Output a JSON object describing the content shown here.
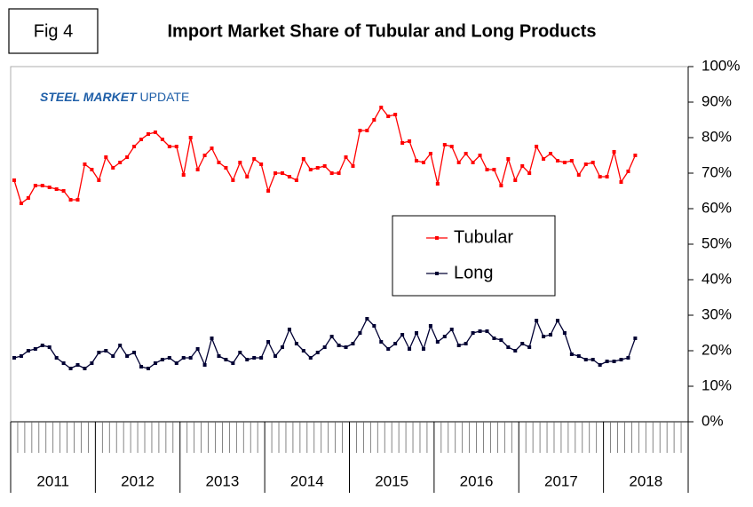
{
  "chart_data": {
    "type": "line",
    "figure_label": "Fig 4",
    "title": "Import Market Share of Tubular and Long Products",
    "logo": {
      "bold": "STEEL MARKET",
      "regular": "UPDATE"
    },
    "categories": [
      null,
      null,
      null,
      null,
      null,
      null,
      null,
      null,
      null,
      null,
      null,
      null,
      null,
      null,
      null,
      null,
      null,
      null,
      null,
      null,
      null,
      null,
      null,
      null,
      null,
      null,
      null,
      null,
      null,
      null,
      null,
      null,
      null,
      null,
      null,
      null,
      null,
      null,
      null,
      null,
      null,
      null,
      null,
      null,
      null,
      null,
      null,
      null,
      null,
      null,
      null,
      null,
      null,
      null,
      null,
      null,
      null,
      null,
      null,
      null,
      null,
      null,
      null,
      null,
      null,
      null,
      null,
      null,
      null,
      null,
      null,
      null,
      null,
      null,
      null,
      null,
      null,
      null,
      null,
      null,
      null,
      null,
      null,
      null,
      null,
      null,
      null,
      null,
      null,
      null,
      null,
      null,
      null,
      null,
      null,
      null
    ],
    "groups": [
      "2011",
      "2012",
      "2013",
      "2014",
      "2015",
      "2016",
      "2017",
      "2018"
    ],
    "series": [
      {
        "name": "Tubular",
        "color": "#ff0000",
        "values": [
          68,
          61.5,
          63,
          66.5,
          66.5,
          66,
          65.5,
          65,
          62.5,
          62.5,
          72.5,
          71,
          68,
          74.5,
          71.5,
          73,
          74.5,
          77.5,
          79.5,
          81,
          81.5,
          79.5,
          77.5,
          77.5,
          69.5,
          80,
          71,
          75,
          77,
          73,
          71.5,
          68,
          73,
          69,
          74,
          72.5,
          65,
          70,
          70,
          69,
          68,
          74,
          71,
          71.5,
          72,
          70,
          70,
          74.5,
          72,
          82,
          82,
          85,
          88.5,
          86,
          86.5,
          78.5,
          79,
          73.5,
          73,
          75.5,
          67,
          78,
          77.5,
          73,
          75.5,
          73,
          75,
          71,
          71,
          66.5,
          74,
          68,
          72,
          70,
          77.5,
          74,
          75.5,
          73.5,
          73,
          73.5,
          69.5,
          72.5,
          73,
          69,
          69,
          76,
          67.5,
          70.5,
          75,
          null,
          null,
          null,
          null,
          null,
          null,
          null
        ]
      },
      {
        "name": "Long",
        "color": "#000033",
        "values": [
          18,
          18.5,
          20,
          20.5,
          21.5,
          21,
          18,
          16.5,
          15,
          16,
          15,
          16.5,
          19.5,
          20,
          18.5,
          21.5,
          18.5,
          19.5,
          15.5,
          15,
          16.5,
          17.5,
          18,
          16.5,
          18,
          18,
          20.5,
          16,
          23.5,
          18.5,
          17.5,
          16.5,
          19.5,
          17.5,
          18,
          18,
          22.5,
          18.5,
          21,
          26,
          22,
          20,
          18,
          19.5,
          21,
          24,
          21.5,
          21,
          22,
          25,
          29,
          27,
          22.5,
          20.5,
          22,
          24.5,
          20.5,
          25,
          20.5,
          27,
          22.5,
          24,
          26,
          21.5,
          22,
          25,
          25.5,
          25.5,
          23.5,
          23,
          21,
          20,
          22,
          21,
          28.5,
          24,
          24.5,
          28.5,
          25,
          19,
          18.5,
          17.5,
          17.5,
          16,
          17,
          17,
          17.5,
          18,
          23.5,
          null,
          null,
          null,
          null,
          null,
          null,
          null
        ]
      }
    ],
    "ylim": [
      0,
      100
    ],
    "yticks": [
      {
        "value": 0,
        "label": "0%"
      },
      {
        "value": 10,
        "label": "10%"
      },
      {
        "value": 20,
        "label": "20%"
      },
      {
        "value": 30,
        "label": "30%"
      },
      {
        "value": 40,
        "label": "40%"
      },
      {
        "value": 50,
        "label": "50%"
      },
      {
        "value": 60,
        "label": "60%"
      },
      {
        "value": 70,
        "label": "70%"
      },
      {
        "value": 80,
        "label": "80%"
      },
      {
        "value": 90,
        "label": "90%"
      },
      {
        "value": 100,
        "label": "100%"
      }
    ],
    "grid": false
  }
}
